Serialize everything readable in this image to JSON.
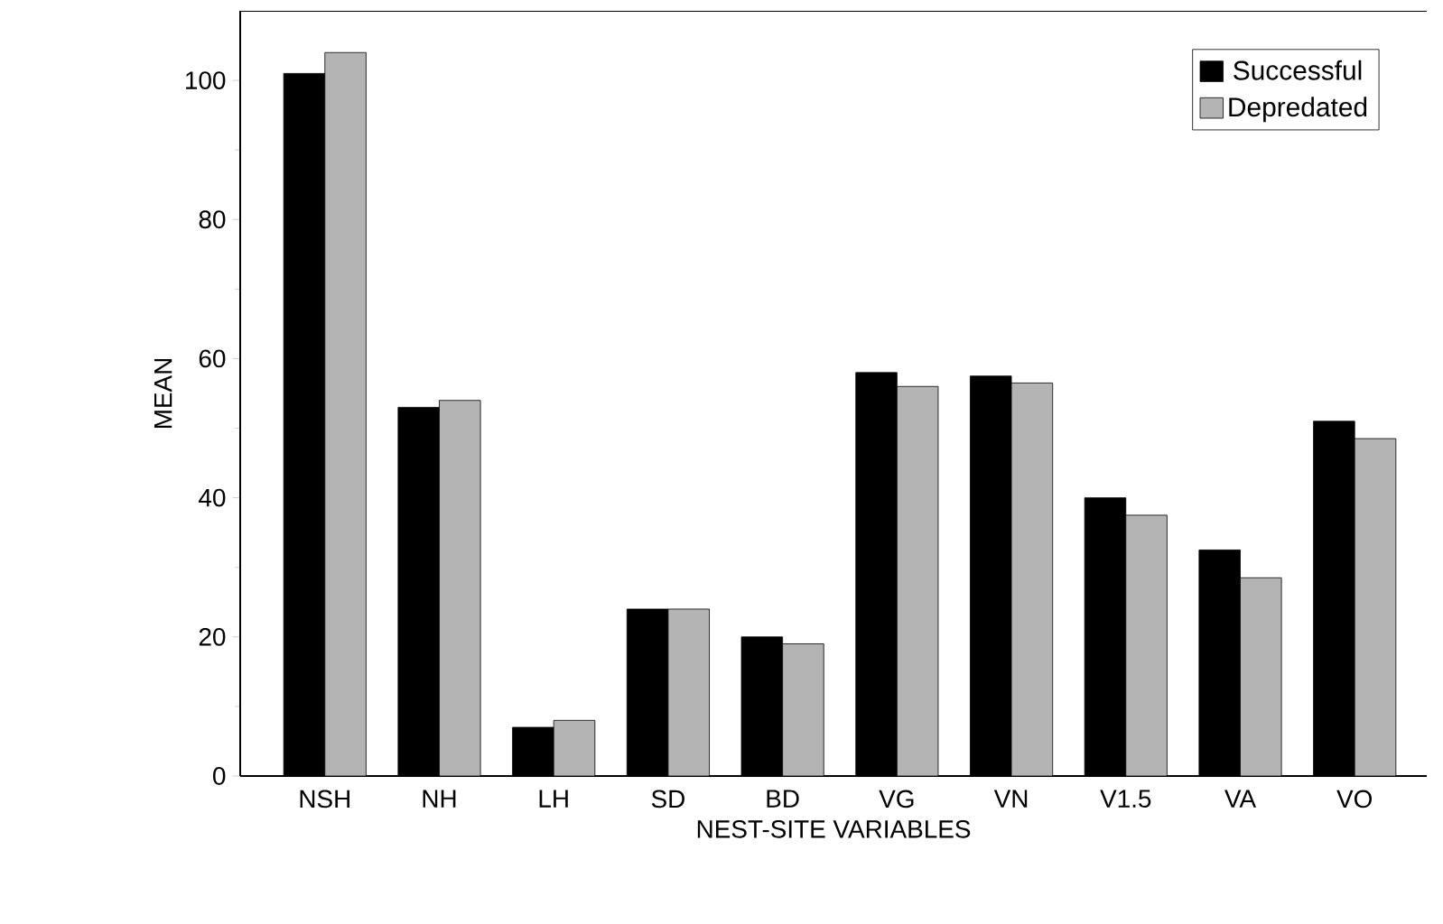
{
  "chart_data": {
    "type": "bar",
    "xlabel": "NEST-SITE VARIABLES",
    "ylabel": "MEAN",
    "categories": [
      "NSH",
      "NH",
      "LH",
      "SD",
      "BD",
      "VG",
      "VN",
      "V1.5",
      "VA",
      "VO"
    ],
    "series": [
      {
        "name": "Successful",
        "color": "#000000",
        "values": [
          101,
          53,
          7,
          24,
          20,
          58,
          57.5,
          40,
          32.5,
          51
        ]
      },
      {
        "name": "Depredated",
        "color": "#b4b4b4",
        "values": [
          104,
          54,
          8,
          24,
          19,
          56,
          56.5,
          37.5,
          28.5,
          48.5
        ]
      }
    ],
    "ylim": [
      0,
      110
    ],
    "yticks": [
      0,
      20,
      40,
      60,
      80,
      100
    ],
    "grid": false,
    "legend": "top right"
  }
}
